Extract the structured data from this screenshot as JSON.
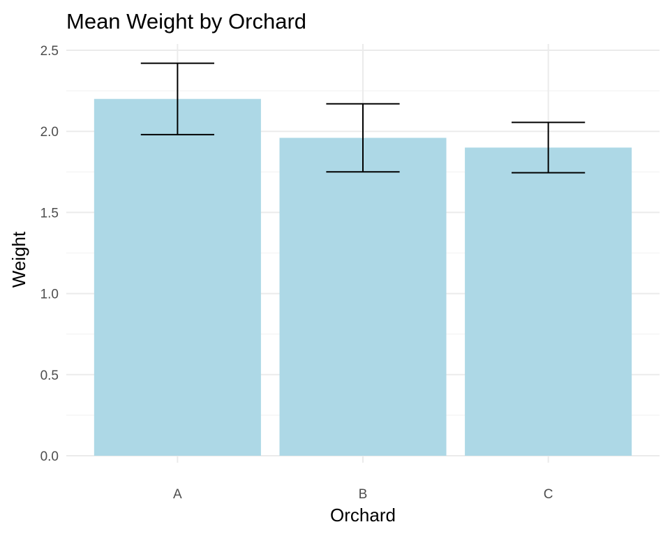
{
  "chart_data": {
    "type": "bar",
    "title": "Mean Weight by Orchard",
    "xlabel": "Orchard",
    "ylabel": "Weight",
    "categories": [
      "A",
      "B",
      "C"
    ],
    "values": [
      2.2,
      1.96,
      1.9
    ],
    "error_bars": [
      {
        "low": 1.98,
        "high": 2.42
      },
      {
        "low": 1.75,
        "high": 2.17
      },
      {
        "low": 1.745,
        "high": 2.055
      }
    ],
    "ylim": [
      0,
      2.5
    ],
    "y_ticks": [
      0.0,
      0.5,
      1.0,
      1.5,
      2.0,
      2.5
    ],
    "y_tick_labels": [
      "0.0",
      "0.5",
      "1.0",
      "1.5",
      "2.0",
      "2.5"
    ],
    "grid": true,
    "legend": "none",
    "colors": {
      "bar_fill": "#ADD8E6",
      "error_bar": "#000000",
      "grid_major": "#EBEBEB",
      "grid_minor": "#F2F2F2",
      "tick_text": "#4D4D4D",
      "title_text": "#000000"
    }
  }
}
